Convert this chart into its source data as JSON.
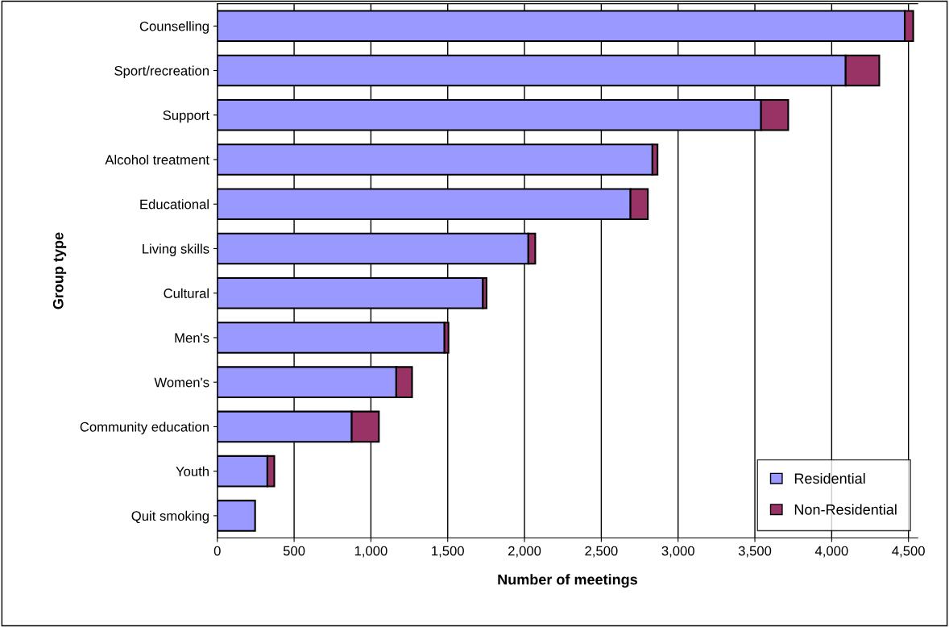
{
  "chart_data": {
    "type": "bar",
    "orientation": "horizontal",
    "stacked": true,
    "xlabel": "Number of meetings",
    "ylabel": "Group type",
    "categories": [
      "Counselling",
      "Sport/recreation",
      "Support",
      "Alcohol treatment",
      "Educational",
      "Living skills",
      "Cultural",
      "Men's",
      "Women's",
      "Community education",
      "Youth",
      "Quit smoking"
    ],
    "series": [
      {
        "name": "Residential",
        "color": "#9999ff",
        "values": [
          4476,
          4091,
          3540,
          2833,
          2690,
          2025,
          1729,
          1479,
          1165,
          875,
          326,
          246
        ]
      },
      {
        "name": "Non-Residential",
        "color": "#993366",
        "values": [
          55,
          219,
          177,
          33,
          113,
          45,
          24,
          26,
          103,
          177,
          45,
          null
        ]
      }
    ],
    "xlim": [
      0,
      4560
    ],
    "xticks": [
      {
        "value": 0,
        "label": "0"
      },
      {
        "value": 500,
        "label": "500"
      },
      {
        "value": 1000,
        "label": "1,000"
      },
      {
        "value": 1500,
        "label": "1,500"
      },
      {
        "value": 2000,
        "label": "2,000"
      },
      {
        "value": 2500,
        "label": "2,500"
      },
      {
        "value": 3000,
        "label": "3,000"
      },
      {
        "value": 3500,
        "label": "3,500"
      },
      {
        "value": 4000,
        "label": "4,000"
      },
      {
        "value": 4500,
        "label": "4,500"
      }
    ],
    "grid": "x",
    "legend": "bottom right"
  }
}
